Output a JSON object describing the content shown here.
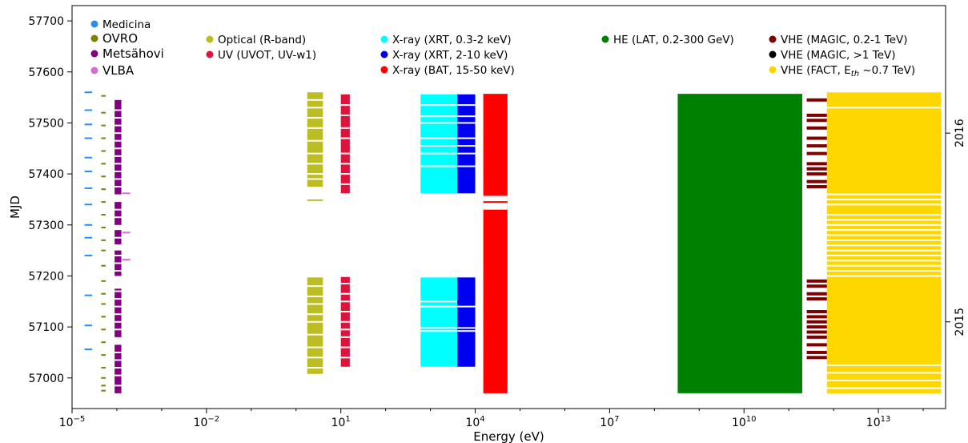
{
  "chart_data": {
    "type": "bar",
    "title": "",
    "xlabel": "Energy (eV)",
    "ylabel": "MJD",
    "x_scale": "log",
    "xlim_exp": [
      -5,
      14.5
    ],
    "ylim": [
      56940,
      57730
    ],
    "x_tick_labels": [
      "10^-5",
      "10^-2",
      "10^1",
      "10^4",
      "10^7",
      "10^10",
      "10^13"
    ],
    "y_ticks": [
      57000,
      57100,
      57200,
      57300,
      57400,
      57500,
      57600,
      57700
    ],
    "year_labels": [
      {
        "label": "2016",
        "mjd": 57480
      },
      {
        "label": "2015",
        "mjd": 57110
      }
    ],
    "bands": [
      {
        "name": "Medicina",
        "label_large": false,
        "color": "#2b8fe8",
        "x_exp": [
          -4.72,
          -4.55
        ],
        "style": "ticks",
        "mjd": [
          57560,
          57525,
          57497,
          57470,
          57432,
          57405,
          57372,
          57340,
          57300,
          57275,
          57240,
          57162,
          57103,
          57056
        ]
      },
      {
        "name": "OVRO",
        "label_large": true,
        "color": "#808000",
        "x_exp": [
          -4.35,
          -4.25
        ],
        "style": "ticks",
        "mjd": [
          57553,
          57520,
          57495,
          57470,
          57445,
          57420,
          57395,
          57370,
          57345,
          57320,
          57295,
          57270,
          57250,
          57220,
          57190,
          57165,
          57145,
          57120,
          57095,
          57070,
          57045,
          57020,
          57000,
          56985,
          56975
        ]
      },
      {
        "name": "Metsähovi",
        "label_large": true,
        "color": "#800080",
        "x_exp": [
          -4.05,
          -3.9
        ],
        "style": "bars",
        "segments": [
          [
            56970,
            57065
          ],
          [
            57080,
            57175
          ],
          [
            57200,
            57250
          ],
          [
            57262,
            57290
          ],
          [
            57300,
            57345
          ],
          [
            57360,
            57545
          ]
        ],
        "gaps": [
          56985,
          57005,
          57020,
          57035,
          57050,
          57095,
          57110,
          57125,
          57140,
          57155,
          57170,
          57210,
          57225,
          57240,
          57275,
          57315,
          57330,
          57375,
          57390,
          57405,
          57420,
          57435,
          57450,
          57465,
          57480,
          57495,
          57510,
          57525
        ]
      },
      {
        "name": "VLBA",
        "label_large": true,
        "color": "#d36ed3",
        "x_exp": [
          -3.88,
          -3.7
        ],
        "style": "ticks",
        "mjd": [
          57362,
          57285,
          57232
        ]
      },
      {
        "name": "Optical (R-band)",
        "label_large": false,
        "color": "#bcbd22",
        "x_exp": [
          0.25,
          0.6
        ],
        "style": "bars",
        "segments": [
          [
            57008,
            57197
          ],
          [
            57347,
            57350
          ],
          [
            57375,
            57560
          ]
        ],
        "gaps": [
          57020,
          57040,
          57060,
          57085,
          57110,
          57125,
          57145,
          57160,
          57180,
          57390,
          57400,
          57420,
          57440,
          57465,
          57490,
          57510,
          57530,
          57545
        ]
      },
      {
        "name": "UV (UVOT, UV-w1)",
        "label_large": false,
        "color": "#dc143c",
        "x_exp": [
          1.0,
          1.2
        ],
        "style": "bars",
        "segments": [
          [
            57022,
            57198
          ],
          [
            57362,
            57556
          ]
        ],
        "gaps": [
          57040,
          57060,
          57080,
          57095,
          57110,
          57130,
          57150,
          57165,
          57185,
          57380,
          57400,
          57420,
          57440,
          57470,
          57490,
          57515,
          57535
        ]
      },
      {
        "name": "X-ray (XRT, 0.3-2 keV)",
        "label_large": false,
        "color": "#00ffff",
        "x_exp": [
          2.78,
          3.6
        ],
        "style": "bars",
        "segments": [
          [
            57022,
            57197
          ],
          [
            57362,
            57556
          ]
        ],
        "gaps": [
          57092,
          57098,
          57140,
          57150,
          57415,
          57440,
          57455,
          57470,
          57500,
          57513,
          57535
        ]
      },
      {
        "name": "X-ray (XRT, 2-10 keV)",
        "label_large": false,
        "color": "#0000f0",
        "x_exp": [
          3.6,
          4.0
        ],
        "style": "bars",
        "segments": [
          [
            57022,
            57197
          ],
          [
            57362,
            57556
          ]
        ],
        "gaps": [
          57092,
          57098,
          57140,
          57415,
          57440,
          57455,
          57470,
          57500,
          57513,
          57535
        ]
      },
      {
        "name": "X-ray (BAT, 15-50 keV)",
        "label_large": false,
        "color": "#ff0000",
        "x_exp": [
          4.18,
          4.72
        ],
        "style": "bars",
        "segments": [
          [
            56970,
            57557
          ]
        ],
        "gaps": [
          57330,
          57357
        ]
      },
      {
        "name": "HE (LAT, 0.2-300 GeV)",
        "label_large": false,
        "color": "#008000",
        "x_exp": [
          8.52,
          11.3
        ],
        "style": "bars",
        "segments": [
          [
            56970,
            57557
          ]
        ],
        "gaps": []
      },
      {
        "name": "VHE (MAGIC, 0.2-1 TeV)",
        "label_large": false,
        "color": "#800000",
        "x_exp": [
          11.4,
          14.4
        ],
        "style": "ticks",
        "mjd": [
          57545,
          57515,
          57505,
          57490,
          57470,
          57455,
          57440,
          57420,
          57410,
          57400,
          57385,
          57375,
          57190,
          57180,
          57165,
          57155,
          57130,
          57120,
          57110,
          57100,
          57090,
          57080,
          57065,
          57050,
          57040
        ]
      },
      {
        "name": "VHE (MAGIC, >1 TeV)",
        "label_large": false,
        "color": "#000000",
        "x_exp": [
          12.0,
          14.4
        ],
        "style": "ticks",
        "mjd": [
          57510,
          57490,
          57460,
          57435,
          57425,
          57405,
          57395,
          57190,
          57170,
          57145,
          57135,
          57120,
          57105,
          57085,
          57070,
          57055,
          57045
        ]
      },
      {
        "name": "VHE (FACT, E_th ~0.7 TeV)",
        "label_large": false,
        "color": "#ffd700",
        "x_exp": [
          11.85,
          14.4
        ],
        "style": "bars",
        "segments": [
          [
            56970,
            57560
          ]
        ],
        "gaps": [
          56980,
          56995,
          57010,
          57025,
          57200,
          57210,
          57220,
          57230,
          57240,
          57250,
          57260,
          57270,
          57280,
          57290,
          57300,
          57310,
          57320,
          57340,
          57350,
          57360,
          57530
        ]
      }
    ],
    "legend_columns": [
      [
        "Medicina",
        "OVRO",
        "Metsähovi",
        "VLBA"
      ],
      [
        "Optical (R-band)",
        "UV (UVOT, UV-w1)"
      ],
      [
        "X-ray (XRT, 0.3-2 keV)",
        "X-ray (XRT, 2-10 keV)",
        "X-ray (BAT, 15-50 keV)"
      ],
      [
        "HE (LAT, 0.2-300 GeV)"
      ],
      [
        "VHE (MAGIC, 0.2-1 TeV)",
        "VHE (MAGIC, >1 TeV)",
        "VHE (FACT, E_th ~0.7 TeV)"
      ]
    ]
  }
}
